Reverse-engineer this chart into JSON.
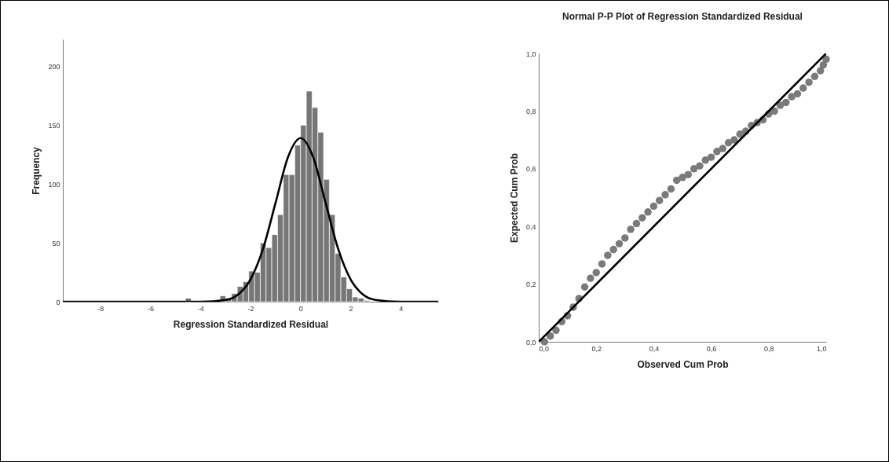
{
  "chart_data": [
    {
      "type": "histogram",
      "xlabel": "Regression Standardized Residual",
      "ylabel": "Frequency",
      "xlim": [
        -9.5,
        5.5
      ],
      "xticks": [
        -8,
        -6,
        -4,
        -2,
        0,
        2,
        4
      ],
      "ylim": [
        0,
        223
      ],
      "yticks": [
        0,
        50,
        100,
        150,
        200
      ],
      "series": [
        {
          "color": "#767676",
          "bins": [
            -4.6,
            -4.37,
            -4.14,
            -3.91,
            -3.68,
            -3.45,
            -3.22,
            -2.99,
            -2.76,
            -2.53,
            -2.3,
            -2.07,
            -1.84,
            -1.61,
            -1.38,
            -1.15,
            -0.92,
            -0.69,
            -0.46,
            -0.23,
            0,
            0.23,
            0.46,
            0.69,
            0.92,
            1.15,
            1.38,
            1.61,
            1.84,
            2.07,
            2.3,
            2.53,
            2.76
          ],
          "values": [
            3,
            0,
            0,
            0,
            0,
            0,
            5,
            3,
            7,
            13,
            17,
            26,
            25,
            50,
            46,
            57,
            74,
            108,
            108,
            133,
            150,
            179,
            165,
            144,
            104,
            74,
            41,
            21,
            11,
            4,
            3,
            1
          ]
        },
        {
          "type": "line",
          "color": "#000000",
          "x": [
            -9.5,
            -4,
            -3,
            -2.5,
            -2,
            -1.5,
            -1,
            -0.5,
            0,
            0.5,
            1,
            1.5,
            2,
            2.5,
            3,
            4,
            5.5
          ],
          "values": [
            0,
            0,
            1.5,
            6,
            19,
            45,
            84,
            123,
            139,
            123,
            84,
            45,
            19,
            6,
            1.5,
            0,
            0
          ]
        }
      ]
    },
    {
      "type": "scatter",
      "title": "Normal P-P Plot of Regression Standardized Residual",
      "xlabel": "Observed Cum Prob",
      "ylabel": "Expected Cum Prob",
      "xlim": [
        0,
        1
      ],
      "ylim": [
        0,
        1
      ],
      "xticks": [
        {
          "value": 0,
          "label": "0,0"
        },
        {
          "value": 0.2,
          "label": "0,2"
        },
        {
          "value": 0.4,
          "label": "0,4"
        },
        {
          "value": 0.6,
          "label": "0,6"
        },
        {
          "value": 0.8,
          "label": "0,8"
        },
        {
          "value": 1,
          "label": "1,0"
        }
      ],
      "yticks": [
        {
          "value": 0,
          "label": "0,0"
        },
        {
          "value": 0.2,
          "label": "0,2"
        },
        {
          "value": 0.4,
          "label": "0,4"
        },
        {
          "value": 0.6,
          "label": "0,6"
        },
        {
          "value": 0.8,
          "label": "0,8"
        },
        {
          "value": 1,
          "label": "1,0"
        }
      ],
      "series": [
        {
          "marker": "circle",
          "color": "#7a7a7a",
          "x": [
            0.02,
            0.04,
            0.06,
            0.08,
            0.1,
            0.12,
            0.14,
            0.16,
            0.18,
            0.2,
            0.22,
            0.24,
            0.26,
            0.28,
            0.3,
            0.32,
            0.34,
            0.36,
            0.38,
            0.4,
            0.42,
            0.44,
            0.46,
            0.48,
            0.5,
            0.52,
            0.54,
            0.56,
            0.58,
            0.6,
            0.62,
            0.64,
            0.66,
            0.68,
            0.7,
            0.72,
            0.74,
            0.76,
            0.78,
            0.8,
            0.82,
            0.84,
            0.86,
            0.88,
            0.9,
            0.92,
            0.94,
            0.96,
            0.98,
            0.99,
            1.0
          ],
          "values": [
            0.0,
            0.02,
            0.04,
            0.07,
            0.09,
            0.12,
            0.15,
            0.19,
            0.22,
            0.24,
            0.27,
            0.3,
            0.32,
            0.34,
            0.36,
            0.39,
            0.41,
            0.43,
            0.45,
            0.47,
            0.49,
            0.51,
            0.53,
            0.56,
            0.57,
            0.58,
            0.6,
            0.61,
            0.63,
            0.64,
            0.66,
            0.67,
            0.69,
            0.7,
            0.72,
            0.73,
            0.75,
            0.76,
            0.77,
            0.79,
            0.8,
            0.82,
            0.83,
            0.85,
            0.86,
            0.88,
            0.9,
            0.92,
            0.94,
            0.96,
            0.98
          ]
        },
        {
          "type": "line",
          "color": "#000000",
          "x": [
            0,
            1
          ],
          "values": [
            0,
            1
          ]
        }
      ]
    }
  ]
}
